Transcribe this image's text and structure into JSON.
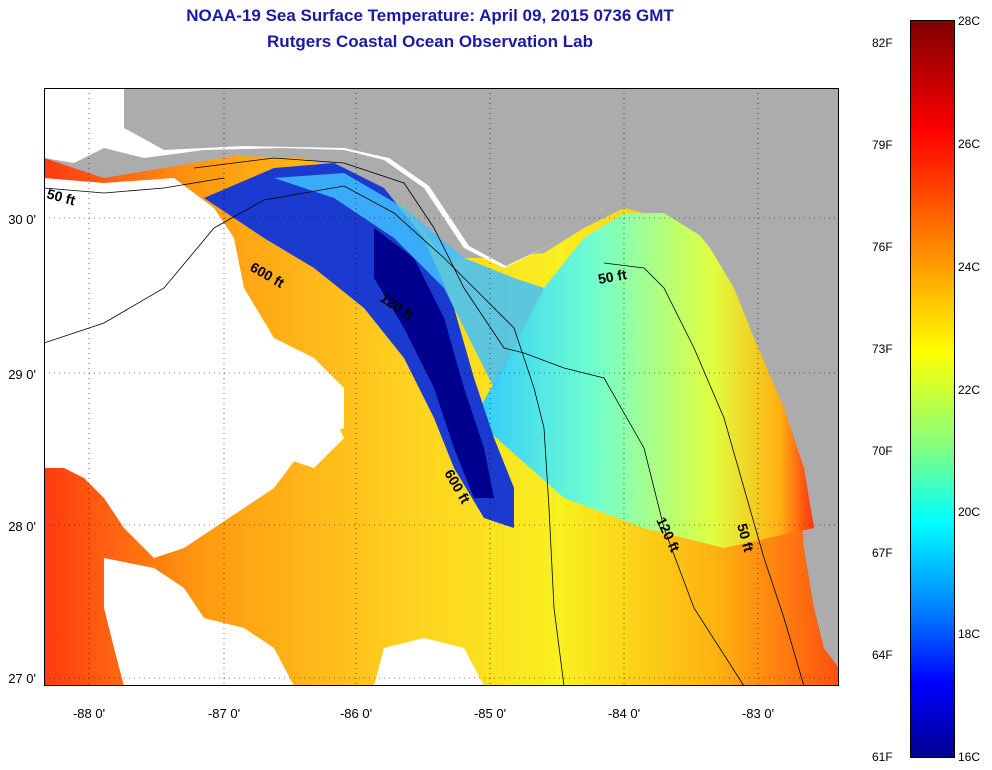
{
  "title_line1": "NOAA-19 Sea Surface Temperature:  April 09, 2015 0736 GMT",
  "title_line2": "Rutgers Coastal Ocean Observation Lab",
  "map": {
    "lat_labels": [
      "30 0'",
      "29 0'",
      "28 0'",
      "27 0'"
    ],
    "lon_labels": [
      "-88 0'",
      "-87 0'",
      "-86 0'",
      "-85 0'",
      "-84 0'",
      "-83 0'"
    ],
    "depth_labels": [
      "50 ft",
      "600 ft",
      "120 ft",
      "50 ft",
      "600 ft",
      "120 ft",
      "50 ft"
    ],
    "colors": {
      "land": "#acacac",
      "cloud": "#ffffff",
      "cold": "#00008f",
      "mid": "#00ffff",
      "warm": "#ffff00",
      "hot": "#ff0000"
    }
  },
  "colorbar": {
    "fahrenheit_labels": [
      "82F",
      "79F",
      "76F",
      "73F",
      "70F",
      "67F",
      "64F",
      "61F"
    ],
    "celsius_labels": [
      "28C",
      "26C",
      "24C",
      "22C",
      "20C",
      "18C",
      "16C"
    ],
    "range_c": [
      16,
      28
    ],
    "range_f": [
      61,
      82
    ]
  }
}
